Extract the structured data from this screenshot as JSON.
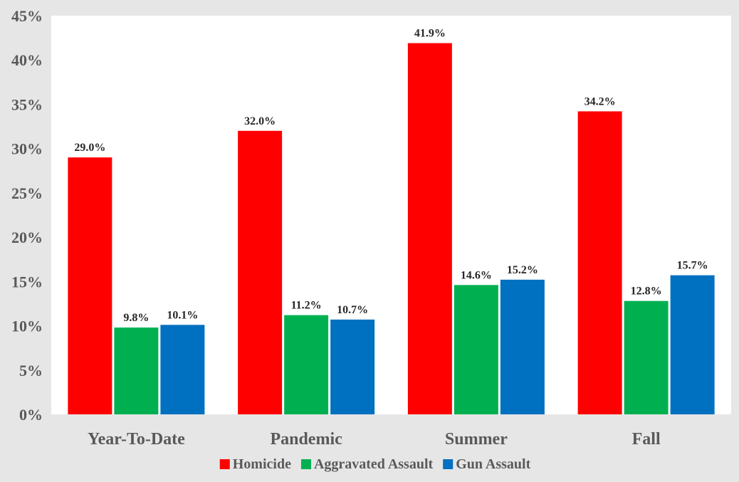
{
  "chart_data": {
    "type": "bar",
    "categories": [
      "Year-To-Date",
      "Pandemic",
      "Summer",
      "Fall"
    ],
    "series": [
      {
        "name": "Homicide",
        "values": [
          29.0,
          32.0,
          41.9,
          34.2
        ],
        "labels": [
          "29.0%",
          "32.0%",
          "41.9%",
          "34.2%"
        ],
        "color": "#ff0000"
      },
      {
        "name": "Aggravated Assault",
        "values": [
          9.8,
          11.2,
          14.6,
          12.8
        ],
        "labels": [
          "9.8%",
          "11.2%",
          "14.6%",
          "12.8%"
        ],
        "color": "#00b050"
      },
      {
        "name": "Gun Assault",
        "values": [
          10.1,
          10.7,
          15.2,
          15.7
        ],
        "labels": [
          "10.1%",
          "10.7%",
          "15.2%",
          "15.7%"
        ],
        "color": "#0070c0"
      }
    ],
    "y_ticks": [
      0,
      5,
      10,
      15,
      20,
      25,
      30,
      35,
      40,
      45
    ],
    "y_tick_labels": [
      "0%",
      "5%",
      "10%",
      "15%",
      "20%",
      "25%",
      "30%",
      "35%",
      "40%",
      "45%"
    ],
    "ylim": [
      0,
      45
    ],
    "title": "",
    "xlabel": "",
    "ylabel": "",
    "grid": false,
    "legend_position": "bottom",
    "background_color": "#e6e6e6",
    "plot_background_color": "#ffffff"
  }
}
